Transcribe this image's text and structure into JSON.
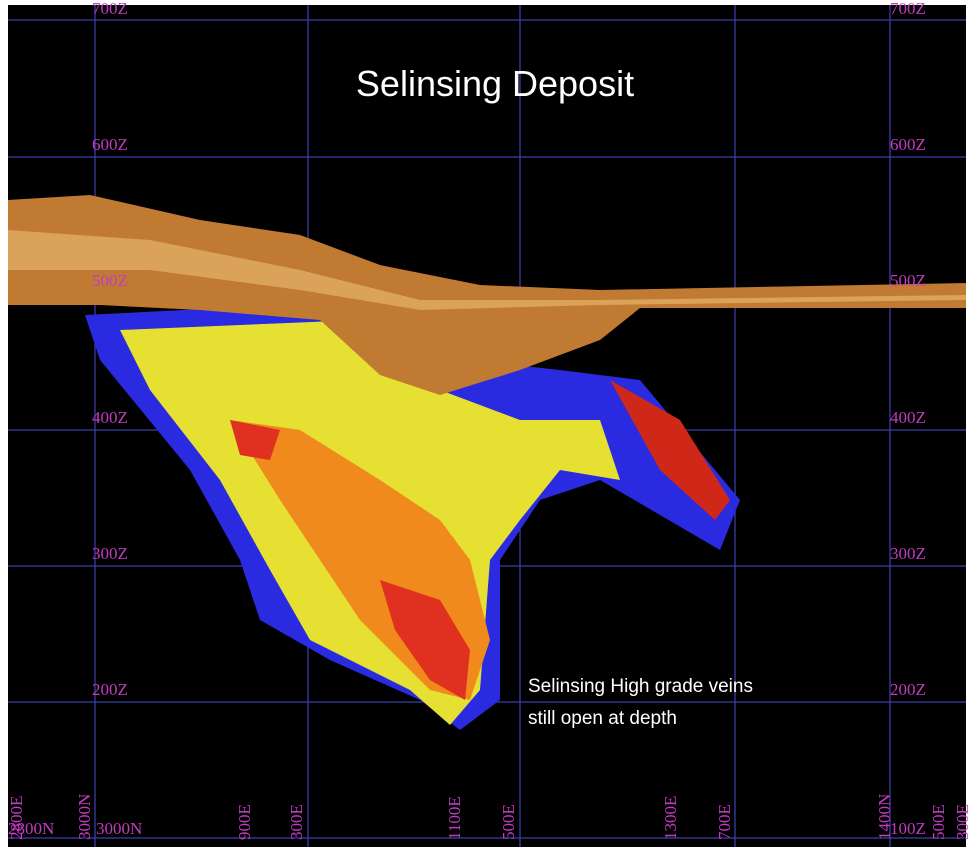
{
  "title": "Selinsing Deposit",
  "annotation": [
    "Selinsing High grade veins",
    "still open at depth"
  ],
  "z_labels_left": [
    "700Z",
    "600Z",
    "500Z",
    "400Z",
    "300Z",
    "200Z"
  ],
  "z_labels_right": [
    "700Z",
    "600Z",
    "500Z",
    "400Z",
    "300Z",
    "200Z",
    "100Z"
  ],
  "bottom_rotated_labels": [
    "2800E",
    "3000N",
    "900E",
    "300E",
    "1100E",
    "500E",
    "1300E",
    "700E",
    "1400N",
    "500E",
    "300E"
  ],
  "bottom_flat_labels": [
    "2800N",
    "3000N"
  ]
}
